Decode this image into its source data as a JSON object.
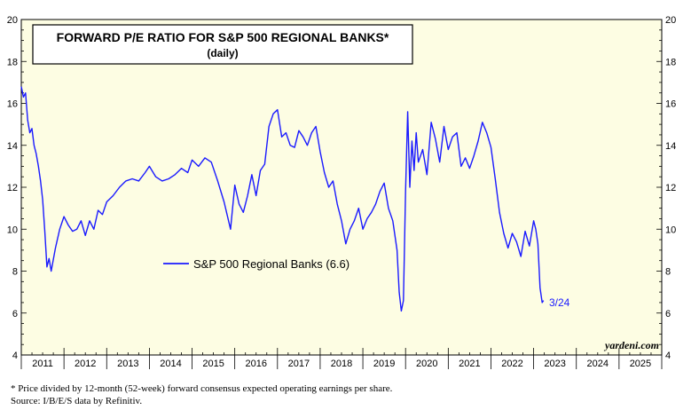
{
  "chart_data": {
    "type": "line",
    "title": "FORWARD P/E RATIO FOR S&P 500 REGIONAL BANKS*",
    "subtitle": "(daily)",
    "ylim": [
      4,
      20
    ],
    "yticks": [
      "4",
      "6",
      "8",
      "10",
      "12",
      "14",
      "16",
      "18",
      "20"
    ],
    "xlim": [
      2011.0,
      2026.0
    ],
    "xtick_labels": [
      "2011",
      "2012",
      "2013",
      "2014",
      "2015",
      "2016",
      "2017",
      "2018",
      "2019",
      "2020",
      "2021",
      "2022",
      "2023",
      "2024",
      "2025"
    ],
    "grid": false,
    "legend_position": "center-left",
    "series": [
      {
        "name": "S&P 500 Regional Banks (6.6)",
        "color": "#1a1aff",
        "x": [
          2011.0,
          2011.05,
          2011.1,
          2011.15,
          2011.2,
          2011.25,
          2011.3,
          2011.35,
          2011.4,
          2011.45,
          2011.5,
          2011.55,
          2011.6,
          2011.65,
          2011.7,
          2011.8,
          2011.9,
          2012.0,
          2012.1,
          2012.2,
          2012.3,
          2012.4,
          2012.5,
          2012.6,
          2012.7,
          2012.8,
          2012.9,
          2013.0,
          2013.15,
          2013.3,
          2013.45,
          2013.6,
          2013.75,
          2013.9,
          2014.0,
          2014.15,
          2014.3,
          2014.45,
          2014.6,
          2014.75,
          2014.9,
          2015.0,
          2015.15,
          2015.3,
          2015.45,
          2015.6,
          2015.75,
          2015.9,
          2016.0,
          2016.1,
          2016.2,
          2016.3,
          2016.4,
          2016.5,
          2016.6,
          2016.7,
          2016.8,
          2016.9,
          2017.0,
          2017.1,
          2017.2,
          2017.3,
          2017.4,
          2017.5,
          2017.6,
          2017.7,
          2017.8,
          2017.9,
          2018.0,
          2018.1,
          2018.2,
          2018.3,
          2018.4,
          2018.5,
          2018.6,
          2018.7,
          2018.8,
          2018.9,
          2019.0,
          2019.1,
          2019.2,
          2019.3,
          2019.4,
          2019.5,
          2019.6,
          2019.7,
          2019.8,
          2019.85,
          2019.9,
          2019.95,
          2020.0,
          2020.05,
          2020.1,
          2020.15,
          2020.2,
          2020.25,
          2020.3,
          2020.4,
          2020.5,
          2020.6,
          2020.7,
          2020.8,
          2020.9,
          2021.0,
          2021.1,
          2021.2,
          2021.3,
          2021.4,
          2021.5,
          2021.6,
          2021.7,
          2021.8,
          2021.9,
          2022.0,
          2022.1,
          2022.2,
          2022.3,
          2022.4,
          2022.5,
          2022.6,
          2022.7,
          2022.8,
          2022.9,
          2023.0,
          2023.05,
          2023.1,
          2023.15,
          2023.2,
          2023.23
        ],
        "values": [
          16.8,
          16.3,
          16.5,
          15.2,
          14.6,
          14.8,
          14.0,
          13.6,
          13.0,
          12.3,
          11.4,
          9.9,
          8.2,
          8.6,
          8.0,
          9.1,
          10.0,
          10.6,
          10.2,
          9.9,
          10.0,
          10.4,
          9.7,
          10.4,
          10.0,
          10.9,
          10.7,
          11.3,
          11.6,
          12.0,
          12.3,
          12.4,
          12.3,
          12.7,
          13.0,
          12.5,
          12.3,
          12.4,
          12.6,
          12.9,
          12.7,
          13.3,
          13.0,
          13.4,
          13.2,
          12.3,
          11.3,
          10.0,
          12.1,
          11.2,
          10.8,
          11.6,
          12.6,
          11.6,
          12.8,
          13.1,
          14.9,
          15.5,
          15.7,
          14.4,
          14.6,
          14.0,
          13.9,
          14.7,
          14.4,
          14.0,
          14.6,
          14.9,
          13.7,
          12.7,
          12.0,
          12.3,
          11.2,
          10.4,
          9.3,
          10.0,
          10.4,
          11.0,
          10.0,
          10.5,
          10.8,
          11.2,
          11.8,
          12.2,
          11.0,
          10.4,
          9.0,
          7.0,
          6.1,
          6.6,
          11.8,
          15.6,
          12.0,
          14.2,
          12.8,
          14.6,
          13.2,
          13.8,
          12.6,
          15.1,
          14.3,
          13.2,
          14.9,
          13.8,
          14.4,
          14.6,
          13.0,
          13.4,
          12.9,
          13.5,
          14.2,
          15.1,
          14.6,
          13.9,
          12.4,
          10.8,
          9.8,
          9.1,
          9.8,
          9.4,
          8.7,
          9.9,
          9.2,
          10.4,
          10.0,
          9.3,
          7.2,
          6.5,
          6.6
        ]
      }
    ],
    "annotations": [
      "3/24"
    ],
    "brand": "yardeni.com"
  },
  "footnotes": {
    "note": "*  Price divided by 12-month (52-week) forward consensus expected operating earnings per share.",
    "source": "Source: I/B/E/S data by Refinitiv."
  },
  "colors": {
    "plot_bg": "#fdfde3",
    "line": "#1a1aff"
  }
}
